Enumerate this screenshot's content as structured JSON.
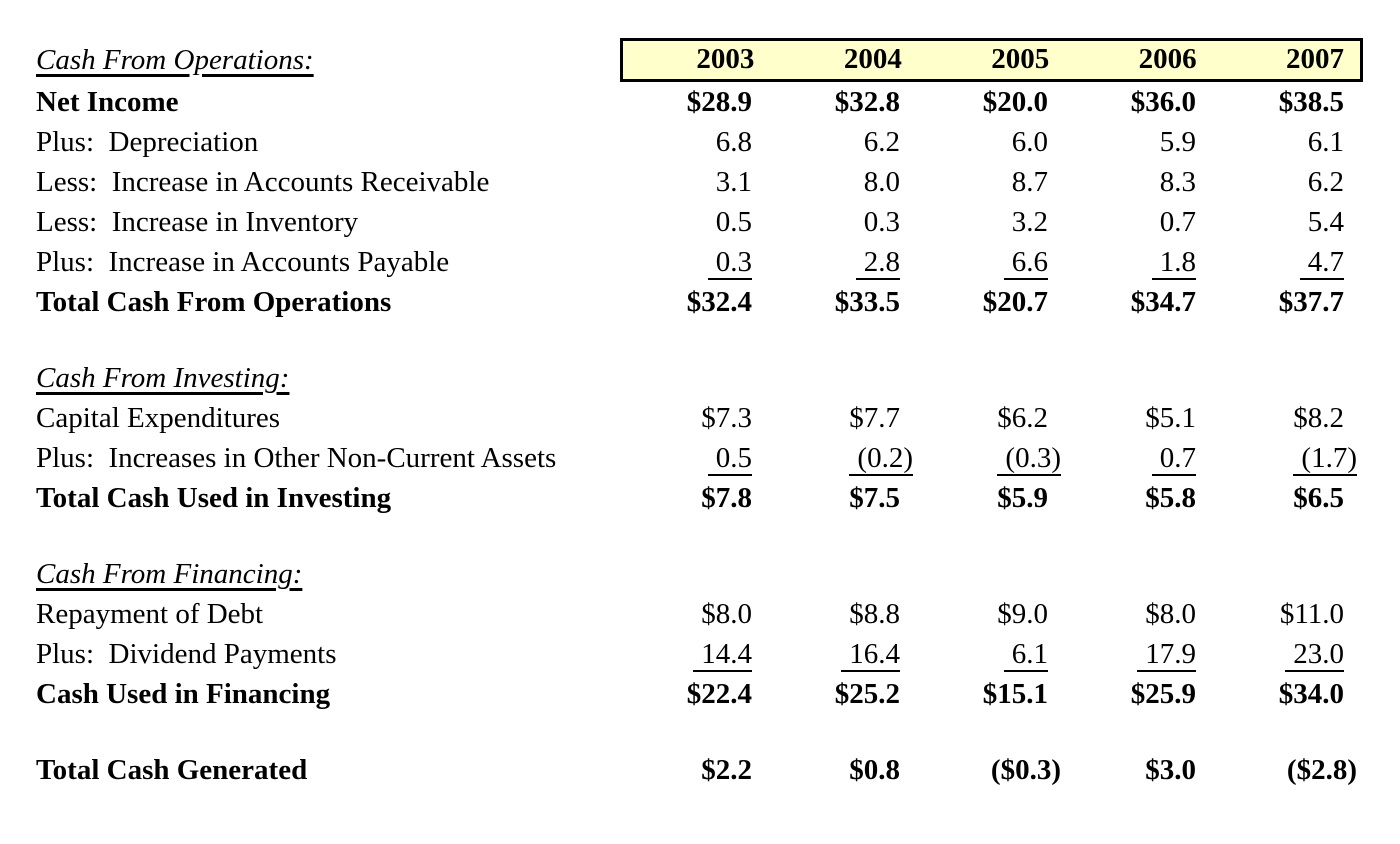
{
  "colors": {
    "background": "#FFFFFF",
    "text": "#000000",
    "year_header_fill": "#FFFFCC",
    "year_header_border": "#000000"
  },
  "years": [
    "2003",
    "2004",
    "2005",
    "2006",
    "2007"
  ],
  "operations": {
    "heading": "Cash From Operations:",
    "rows": [
      {
        "label": "Net Income",
        "v": [
          "$28.9",
          "$32.8",
          "$20.0",
          "$36.0",
          "$38.5"
        ]
      },
      {
        "label": "Plus:  Depreciation",
        "v": [
          "6.8",
          "6.2",
          "6.0",
          "5.9",
          "6.1"
        ]
      },
      {
        "label": "Less:  Increase in Accounts Receivable",
        "v": [
          "3.1",
          "8.0",
          "8.7",
          "8.3",
          "6.2"
        ]
      },
      {
        "label": "Less:  Increase in Inventory",
        "v": [
          "0.5",
          "0.3",
          "3.2",
          "0.7",
          "5.4"
        ]
      },
      {
        "label": "Plus:  Increase in Accounts Payable",
        "v": [
          "0.3",
          "2.8",
          "6.6",
          "1.8",
          "4.7"
        ]
      },
      {
        "label": "Total Cash From Operations",
        "v": [
          "$32.4",
          "$33.5",
          "$20.7",
          "$34.7",
          "$37.7"
        ]
      }
    ]
  },
  "investing": {
    "heading": "Cash From Investing:",
    "rows": [
      {
        "label": "Capital Expenditures",
        "v": [
          "$7.3",
          "$7.7",
          "$6.2",
          "$5.1",
          "$8.2"
        ]
      },
      {
        "label": "Plus:  Increases in Other Non-Current Assets",
        "v": [
          "0.5",
          "(0.2)",
          "(0.3)",
          "0.7",
          "(1.7)"
        ]
      },
      {
        "label": "Total Cash Used in Investing",
        "v": [
          "$7.8",
          "$7.5",
          "$5.9",
          "$5.8",
          "$6.5"
        ]
      }
    ]
  },
  "financing": {
    "heading": "Cash From Financing:",
    "rows": [
      {
        "label": "Repayment of Debt",
        "v": [
          "$8.0",
          "$8.8",
          "$9.0",
          "$8.0",
          "$11.0"
        ]
      },
      {
        "label": "Plus:  Dividend Payments",
        "v": [
          "14.4",
          "16.4",
          "6.1",
          "17.9",
          "23.0"
        ]
      },
      {
        "label": "Cash Used in Financing",
        "v": [
          "$22.4",
          "$25.2",
          "$15.1",
          "$25.9",
          "$34.0"
        ]
      }
    ]
  },
  "grand_total": {
    "label": "Total Cash Generated",
    "v": [
      "$2.2",
      "$0.8",
      "($0.3)",
      "$3.0",
      "($2.8)"
    ]
  }
}
